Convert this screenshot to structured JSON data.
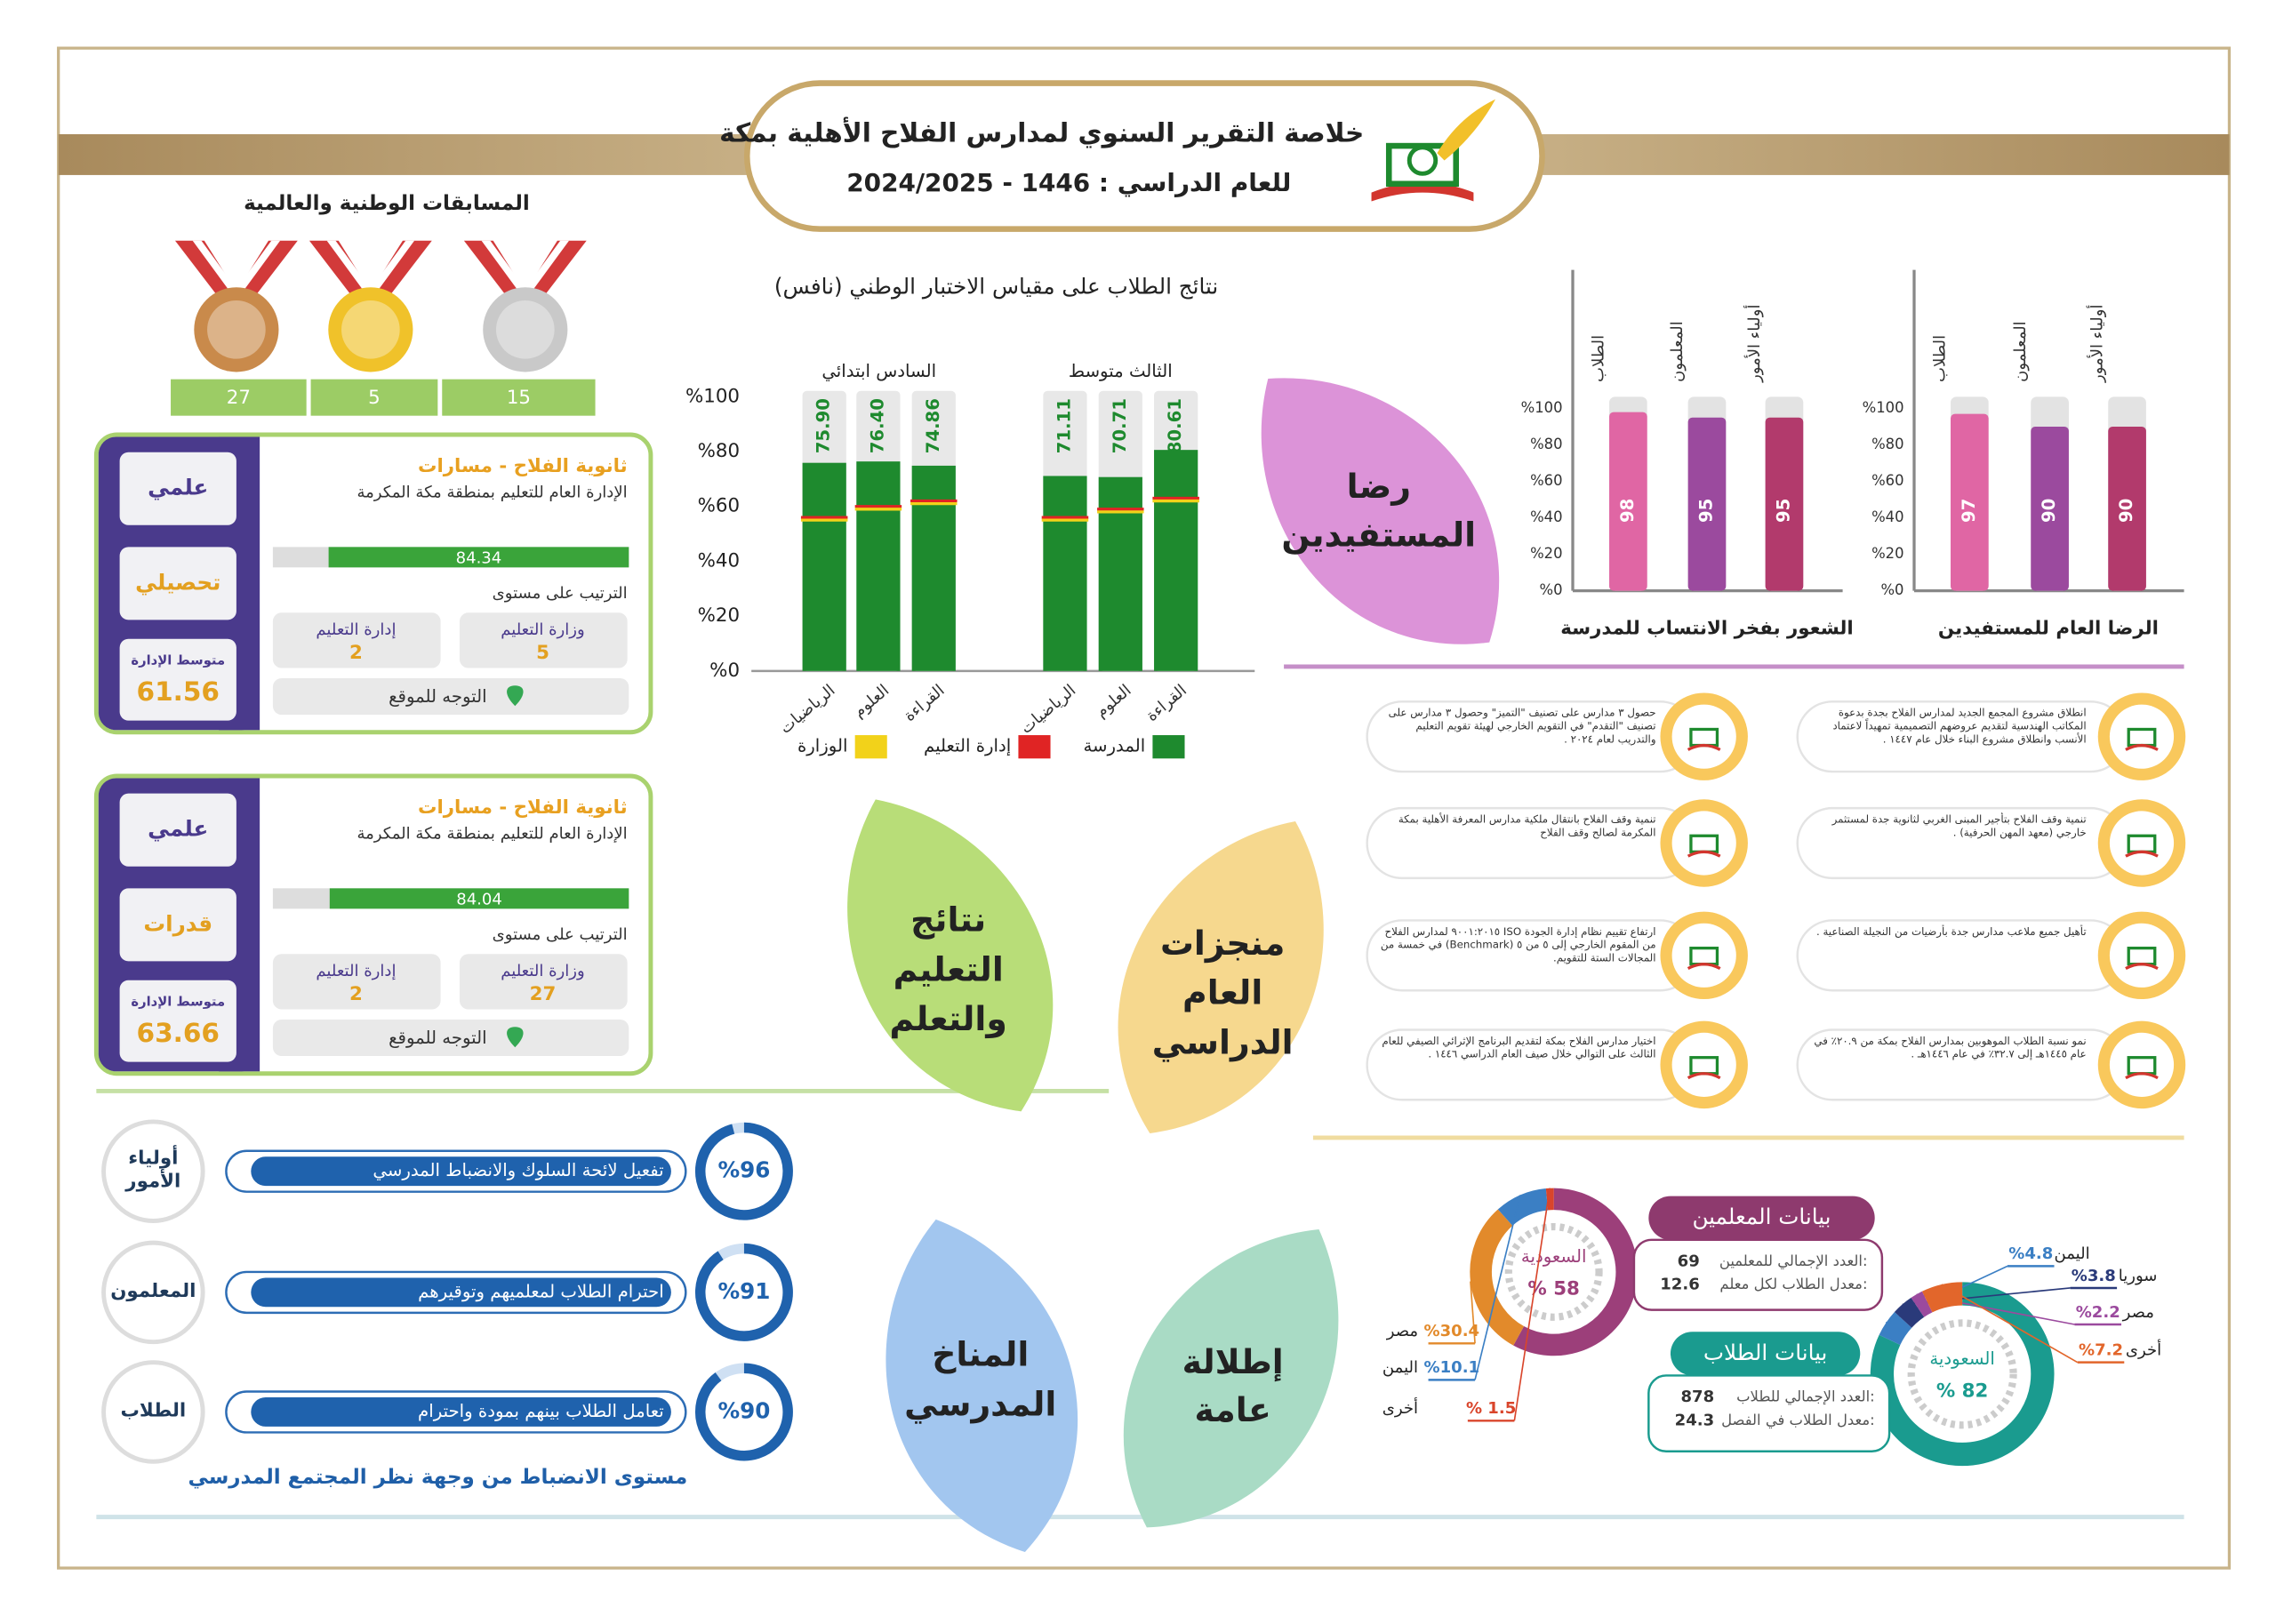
{
  "header": {
    "title": "خلاصة التقرير السنوي لمدارس الفلاح الأهلية بمكة",
    "subtitle": "للعام الدراسي : 1446 - 2024/2025"
  },
  "competitions": {
    "title": "المسابقات الوطنية والعالمية",
    "medals": [
      {
        "count": 27,
        "color": "#c98a4b"
      },
      {
        "count": 5,
        "color": "#f0c22a"
      },
      {
        "count": 15,
        "color": "#c9c9c9"
      }
    ]
  },
  "schools": [
    {
      "name": "ثانوية الفلاح - مسارات",
      "authority": "الإدارة العام للتعليم بمنطقة مكة المكرمة",
      "tracks": [
        "علمي",
        "تحصيلي"
      ],
      "score": 84.34,
      "rank_label": "الترتيب على مستوى",
      "ranks": [
        {
          "label": "وزارة التعليم",
          "value": 5
        },
        {
          "label": "إدارة التعليم",
          "value": 2
        }
      ],
      "average_label": "متوسط الإدارة",
      "average": 61.56,
      "link": "التوجه للموقع"
    },
    {
      "name": "ثانوية الفلاح - مسارات",
      "authority": "الإدارة العام للتعليم بمنطقة مكة المكرمة",
      "tracks": [
        "علمي",
        "قدرات"
      ],
      "score": 84.04,
      "rank_label": "الترتيب على مستوى",
      "ranks": [
        {
          "label": "وزارة التعليم",
          "value": 27
        },
        {
          "label": "إدارة التعليم",
          "value": 2
        }
      ],
      "average_label": "متوسط الإدارة",
      "average": 63.66,
      "link": "التوجه للموقع"
    }
  ],
  "nafs": {
    "title": "نتائج الطلاب على مقياس الاختبار الوطني (نافس)",
    "ylim": [
      0,
      100
    ],
    "yticks": [
      {
        "value": 100,
        "label": "%100"
      },
      {
        "value": 80,
        "label": "%80"
      },
      {
        "value": 60,
        "label": "%60"
      },
      {
        "value": 40,
        "label": "%40"
      },
      {
        "value": 20,
        "label": "%20"
      },
      {
        "value": 0,
        "label": "%0"
      }
    ],
    "groups": [
      {
        "name": "السادس ابتدائي",
        "categories": [
          "الرياضيات",
          "العلوم",
          "القراءة"
        ]
      },
      {
        "name": "الثالث متوسط",
        "categories": [
          "الرياضيات",
          "العلوم",
          "القراءة"
        ]
      }
    ],
    "series": [
      {
        "name": "المدرسة",
        "color": "#1e8a2e",
        "values": [
          75.9,
          76.4,
          74.86,
          71.11,
          70.71,
          80.61
        ],
        "value_labels": [
          "75.90",
          "76.40",
          "74.86",
          "71.11",
          "70.71",
          "80.61"
        ]
      },
      {
        "name": "إدارة التعليم",
        "color": "#e02424",
        "values": [
          56,
          60,
          62,
          56,
          59,
          63
        ]
      },
      {
        "name": "الوزارة",
        "color": "#f2d21a",
        "values": [
          55,
          59,
          61,
          55,
          58,
          62
        ]
      }
    ]
  },
  "satisfaction": [
    {
      "title": "الرضا العام للمستفيدين",
      "categories": [
        "الطلاب",
        "المعلمون",
        "أولياء الأمور"
      ],
      "values": [
        97,
        90,
        90
      ],
      "colors": [
        "#e066a4",
        "#9b4a9e",
        "#b23a6c"
      ],
      "ylim": [
        0,
        100
      ],
      "yticks": [
        {
          "value": 100,
          "label": "%100"
        },
        {
          "value": 80,
          "label": "%80"
        },
        {
          "value": 60,
          "label": "%60"
        },
        {
          "value": 40,
          "label": "%40"
        },
        {
          "value": 20,
          "label": "%20"
        },
        {
          "value": 0,
          "label": "%0"
        }
      ]
    },
    {
      "title": "الشعور بفخر الانتساب للمدرسة",
      "categories": [
        "الطلاب",
        "المعلمون",
        "أولياء الأمور"
      ],
      "values": [
        98,
        95,
        95
      ],
      "colors": [
        "#e066a4",
        "#9b4a9e",
        "#b23a6c"
      ],
      "ylim": [
        0,
        100
      ],
      "yticks": [
        {
          "value": 100,
          "label": "%100"
        },
        {
          "value": 80,
          "label": "%80"
        },
        {
          "value": 60,
          "label": "%60"
        },
        {
          "value": 40,
          "label": "%40"
        },
        {
          "value": 20,
          "label": "%20"
        },
        {
          "value": 0,
          "label": "%0"
        }
      ]
    }
  ],
  "leaves": [
    {
      "lines": [
        "رضا",
        "المستفيدين"
      ],
      "color": "#dc93d8"
    },
    {
      "lines": [
        "منجزات",
        "العام",
        "الدراسي"
      ],
      "color": "#f6d88e"
    },
    {
      "lines": [
        "نتائج",
        "التعليم",
        "والتعلم"
      ],
      "color": "#b8dd78"
    },
    {
      "lines": [
        "المناخ",
        "المدرسي"
      ],
      "color": "#a2c6ef"
    },
    {
      "lines": [
        "إطلالة",
        "عامة"
      ],
      "color": "#a9dbc5"
    }
  ],
  "achievements": [
    "انطلاق مشروع المجمع الجديد لمدارس الفلاح بجدة بدعوة المكاتب الهندسية لتقديم عروضهم التصميمية تمهيداً لاعتماد الأنسب وانطلاق مشروع البناء خلال عام ١٤٤٧ .",
    "تنمية وقف الفلاح بتأجير المبنى الغربي لثانوية جدة لمستثمر خارجي (معهد المهن الحرفية) .",
    "تأهيل جميع ملاعب مدارس جدة بأرضيات من النجيلة الصناعية .",
    "نمو نسبة الطلاب الموهوبين بمدارس الفلاح بمكة من ٢٠.٩٪ في عام ١٤٤٥هـ إلى ٣٢.٧٪ في عام ١٤٤٦هـ .",
    "حصول ٣ مدارس على تصنيف \"التميز\" وحصول ٣ مدارس على تصنيف \"التقدم\" في التقويم الخارجي لهيئة تقويم التعليم والتدريب لعام ٢٠٢٤ .",
    "تنمية وقف الفلاح بانتقال ملكية مدارس المعرفة الأهلية بمكة المكرمة لصالح وقف الفلاح",
    "ارتفاع تقييم نظام إدارة الجودة ISO ٩٠٠١:٢٠١٥ لمدارس الفلاح من المقوم الخارجي إلى ٥ من ٥ (Benchmark) في خمسة من المجالات الستة للتقويم.",
    "اختيار مدارس الفلاح بمكة لتقديم البرنامج الإثرائي الصيفي للعام الثالث على التوالي خلال صيف العام الدراسي ١٤٤٦ ."
  ],
  "climate": {
    "items": [
      {
        "group": "أولياء الأمور",
        "text": "تفعيل لائحة السلوك والانضباط المدرسي",
        "value": 96,
        "label": "%96"
      },
      {
        "group": "المعلمون",
        "text": "احترام الطلاب لمعلميهم وتوقيرهم",
        "value": 91,
        "label": "%91"
      },
      {
        "group": "الطلاب",
        "text": "تعامل الطلاب بينهم بمودة واحترام",
        "value": 90,
        "label": "%90"
      }
    ],
    "caption": "مستوى الانضباط من وجهة نظر المجتمع المدرسي"
  },
  "overview": {
    "teachers": {
      "title": "بيانات المعلمين",
      "color": "#8e3a6e",
      "stats": [
        {
          "label": "العدد الإجمالي للمعلمين:",
          "value": 69
        },
        {
          "label": "معدل الطلاب لكل معلم:",
          "value": 12.6
        }
      ],
      "segments": [
        {
          "name": "السعودية",
          "value": 58,
          "label": "% 58",
          "color": "#9c3f7a"
        },
        {
          "name": "مصر",
          "value": 30.4,
          "label": "%30.4",
          "color": "#e28a2b"
        },
        {
          "name": "اليمن",
          "value": 10.1,
          "label": "%10.1",
          "color": "#3b7fc4"
        },
        {
          "name": "أخرى",
          "value": 1.5,
          "label": "% 1.5",
          "color": "#d9452b"
        }
      ]
    },
    "students": {
      "title": "بيانات الطلاب",
      "color": "#1a9b8f",
      "stats": [
        {
          "label": "العدد الإجمالي للطلاب:",
          "value": 878
        },
        {
          "label": "معدل الطلاب في الفصل:",
          "value": 24.3
        }
      ],
      "segments": [
        {
          "name": "السعودية",
          "value": 82,
          "label": "% 82",
          "color": "#1a9b8f"
        },
        {
          "name": "اليمن",
          "value": 4.8,
          "label": "%4.8",
          "color": "#3b7fc4"
        },
        {
          "name": "سوريا",
          "value": 3.8,
          "label": "%3.8",
          "color": "#2a3a7a"
        },
        {
          "name": "مصر",
          "value": 2.2,
          "label": "%2.2",
          "color": "#9b4a9e"
        },
        {
          "name": "أخرى",
          "value": 7.2,
          "label": "%7.2",
          "color": "#e2662b"
        }
      ]
    }
  }
}
